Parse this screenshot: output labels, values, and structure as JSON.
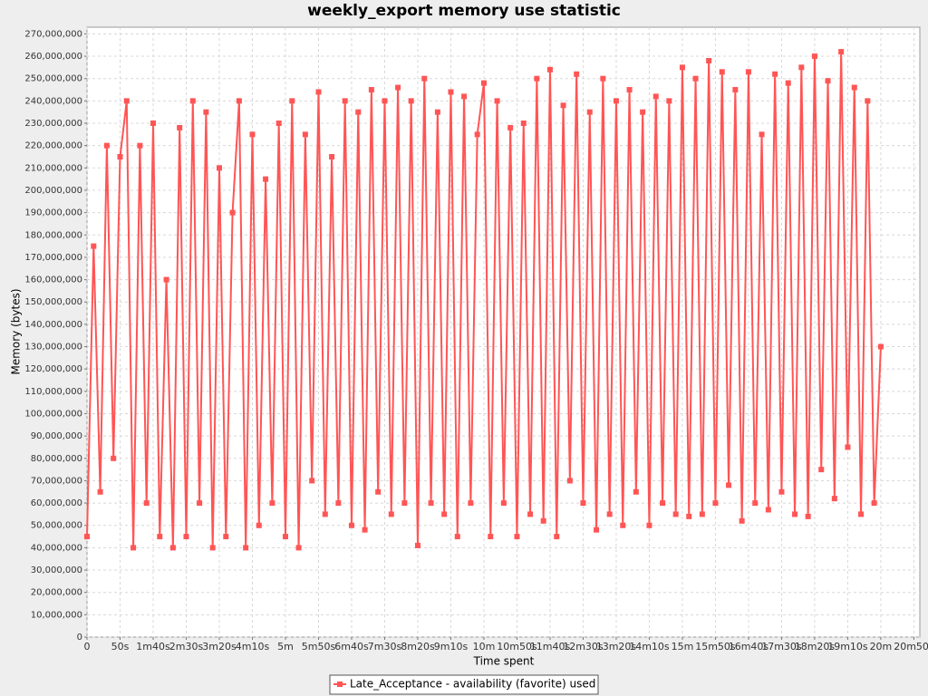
{
  "chart_data": {
    "type": "line",
    "title": "weekly_export memory use statistic",
    "x_label": "Time spent",
    "y_label": "Memory (bytes)",
    "xlim": [
      0,
      1259
    ],
    "ylim": [
      0,
      273000000
    ],
    "grid": true,
    "legend": "bottom",
    "xticks": [
      0,
      {
        "value": 50,
        "label": "50s"
      },
      {
        "value": 100,
        "label": "1m40s"
      },
      {
        "value": 150,
        "label": "2m30s"
      },
      {
        "value": 200,
        "label": "3m20s"
      },
      {
        "value": 250,
        "label": "4m10s"
      },
      {
        "value": 300,
        "label": "5m"
      },
      {
        "value": 350,
        "label": "5m50s"
      },
      {
        "value": 400,
        "label": "6m40s"
      },
      {
        "value": 450,
        "label": "7m30s"
      },
      {
        "value": 500,
        "label": "8m20s"
      },
      {
        "value": 550,
        "label": "9m10s"
      },
      {
        "value": 600,
        "label": "10m"
      },
      {
        "value": 650,
        "label": "10m50s"
      },
      {
        "value": 700,
        "label": "11m40s"
      },
      {
        "value": 750,
        "label": "12m30s"
      },
      {
        "value": 800,
        "label": "13m20s"
      },
      {
        "value": 850,
        "label": "14m10s"
      },
      {
        "value": 900,
        "label": "15m"
      },
      {
        "value": 950,
        "label": "15m50s"
      },
      {
        "value": 1000,
        "label": "16m40s"
      },
      {
        "value": 1050,
        "label": "17m30s"
      },
      {
        "value": 1100,
        "label": "18m20s"
      },
      {
        "value": 1150,
        "label": "19m10s"
      },
      {
        "value": 1200,
        "label": "20m"
      },
      {
        "value": 1250,
        "label": "20m50s"
      }
    ],
    "yticks": [
      0,
      {
        "value": 10000000,
        "label": "10,000,000"
      },
      {
        "value": 20000000,
        "label": "20,000,000"
      },
      {
        "value": 30000000,
        "label": "30,000,000"
      },
      {
        "value": 40000000,
        "label": "40,000,000"
      },
      {
        "value": 50000000,
        "label": "50,000,000"
      },
      {
        "value": 60000000,
        "label": "60,000,000"
      },
      {
        "value": 70000000,
        "label": "70,000,000"
      },
      {
        "value": 80000000,
        "label": "80,000,000"
      },
      {
        "value": 90000000,
        "label": "90,000,000"
      },
      {
        "value": 100000000,
        "label": "100,000,000"
      },
      {
        "value": 110000000,
        "label": "110,000,000"
      },
      {
        "value": 120000000,
        "label": "120,000,000"
      },
      {
        "value": 130000000,
        "label": "130,000,000"
      },
      {
        "value": 140000000,
        "label": "140,000,000"
      },
      {
        "value": 150000000,
        "label": "150,000,000"
      },
      {
        "value": 160000000,
        "label": "160,000,000"
      },
      {
        "value": 170000000,
        "label": "170,000,000"
      },
      {
        "value": 180000000,
        "label": "180,000,000"
      },
      {
        "value": 190000000,
        "label": "190,000,000"
      },
      {
        "value": 200000000,
        "label": "200,000,000"
      },
      {
        "value": 210000000,
        "label": "210,000,000"
      },
      {
        "value": 220000000,
        "label": "220,000,000"
      },
      {
        "value": 230000000,
        "label": "230,000,000"
      },
      {
        "value": 240000000,
        "label": "240,000,000"
      },
      {
        "value": 250000000,
        "label": "250,000,000"
      },
      {
        "value": 260000000,
        "label": "260,000,000"
      },
      {
        "value": 270000000,
        "label": "270,000,000"
      }
    ],
    "x": [
      0,
      10,
      20,
      30,
      40,
      50,
      60,
      70,
      80,
      90,
      100,
      110,
      120,
      130,
      140,
      150,
      160,
      170,
      180,
      190,
      200,
      210,
      220,
      230,
      240,
      250,
      260,
      270,
      280,
      290,
      300,
      310,
      320,
      330,
      340,
      350,
      360,
      370,
      380,
      390,
      400,
      410,
      420,
      430,
      440,
      450,
      460,
      470,
      480,
      490,
      500,
      510,
      520,
      530,
      540,
      550,
      560,
      570,
      580,
      590,
      600,
      610,
      620,
      630,
      640,
      650,
      660,
      670,
      680,
      690,
      700,
      710,
      720,
      730,
      740,
      750,
      760,
      770,
      780,
      790,
      800,
      810,
      820,
      830,
      840,
      850,
      860,
      870,
      880,
      890,
      900,
      910,
      920,
      930,
      940,
      950,
      960,
      970,
      980,
      990,
      1000,
      1010,
      1020,
      1030,
      1040,
      1050,
      1060,
      1070,
      1080,
      1090,
      1100,
      1110,
      1120,
      1130,
      1140,
      1150,
      1160,
      1170,
      1180,
      1190,
      1200
    ],
    "series": [
      {
        "name": "Late_Acceptance - availability (favorite) used",
        "color": "#ff5555",
        "values": [
          45000000,
          175000000,
          65000000,
          220000000,
          80000000,
          215000000,
          240000000,
          40000000,
          220000000,
          60000000,
          230000000,
          45000000,
          160000000,
          40000000,
          228000000,
          45000000,
          240000000,
          60000000,
          235000000,
          40000000,
          210000000,
          45000000,
          190000000,
          240000000,
          40000000,
          225000000,
          50000000,
          205000000,
          60000000,
          230000000,
          45000000,
          240000000,
          40000000,
          225000000,
          70000000,
          244000000,
          55000000,
          215000000,
          60000000,
          240000000,
          50000000,
          235000000,
          48000000,
          245000000,
          65000000,
          240000000,
          55000000,
          246000000,
          60000000,
          240000000,
          41000000,
          250000000,
          60000000,
          235000000,
          55000000,
          244000000,
          45000000,
          242000000,
          60000000,
          225000000,
          248000000,
          45000000,
          240000000,
          60000000,
          228000000,
          45000000,
          230000000,
          55000000,
          250000000,
          52000000,
          254000000,
          45000000,
          238000000,
          70000000,
          252000000,
          60000000,
          235000000,
          48000000,
          250000000,
          55000000,
          240000000,
          50000000,
          245000000,
          65000000,
          235000000,
          50000000,
          242000000,
          60000000,
          240000000,
          55000000,
          255000000,
          54000000,
          250000000,
          55000000,
          258000000,
          60000000,
          253000000,
          68000000,
          245000000,
          52000000,
          253000000,
          60000000,
          225000000,
          57000000,
          252000000,
          65000000,
          248000000,
          55000000,
          255000000,
          54000000,
          260000000,
          75000000,
          249000000,
          62000000,
          262000000,
          85000000,
          246000000,
          55000000,
          240000000,
          60000000,
          130000000
        ]
      }
    ]
  }
}
